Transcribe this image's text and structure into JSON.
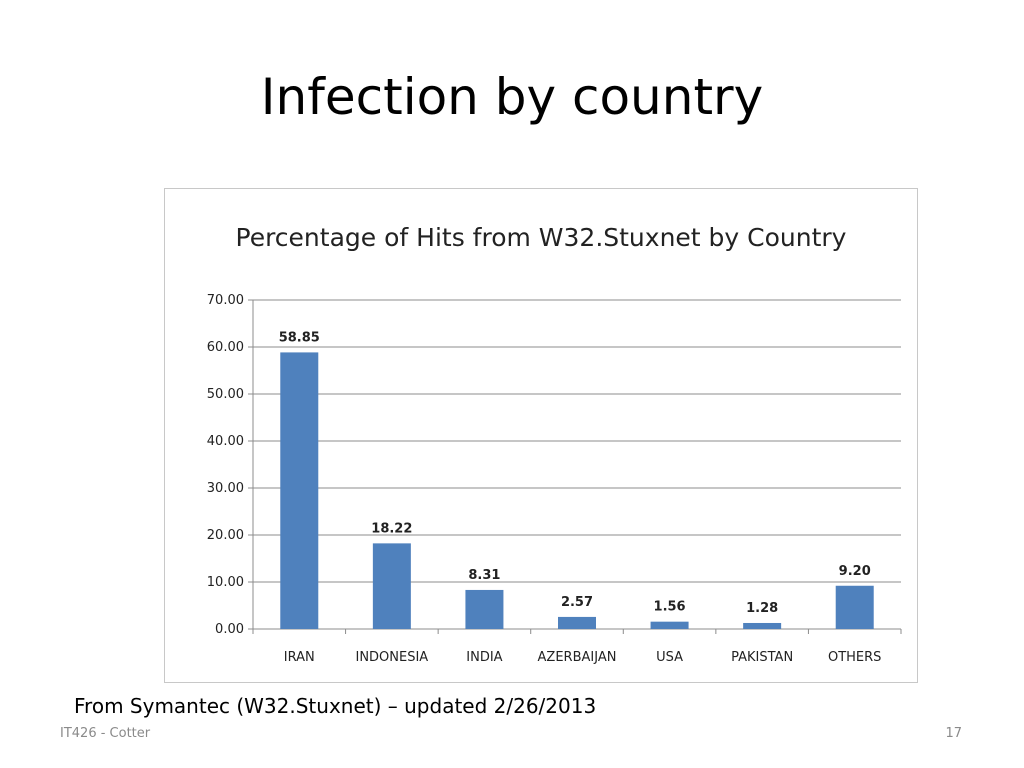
{
  "slide": {
    "title": "Infection by country",
    "source_note": "From Symantec (W32.Stuxnet) – updated 2/26/2013",
    "footer_left": "IT426 - Cotter",
    "page_number": "17"
  },
  "colors": {
    "bar": "#4f81bd",
    "grid": "#8c8c8c",
    "axis": "#8c8c8c"
  },
  "chart_data": {
    "type": "bar",
    "title": "Percentage of Hits from W32.Stuxnet by Country",
    "xlabel": "",
    "ylabel": "",
    "categories": [
      "IRAN",
      "INDONESIA",
      "INDIA",
      "AZERBAIJAN",
      "USA",
      "PAKISTAN",
      "OTHERS"
    ],
    "values": [
      58.85,
      18.22,
      8.31,
      2.57,
      1.56,
      1.28,
      9.2
    ],
    "data_labels": [
      "58.85",
      "18.22",
      "8.31",
      "2.57",
      "1.56",
      "1.28",
      "9.20"
    ],
    "ylim": [
      0,
      70
    ],
    "yticks": [
      "0.00",
      "10.00",
      "20.00",
      "30.00",
      "40.00",
      "50.00",
      "60.00",
      "70.00"
    ],
    "grid": true,
    "legend": "none"
  }
}
